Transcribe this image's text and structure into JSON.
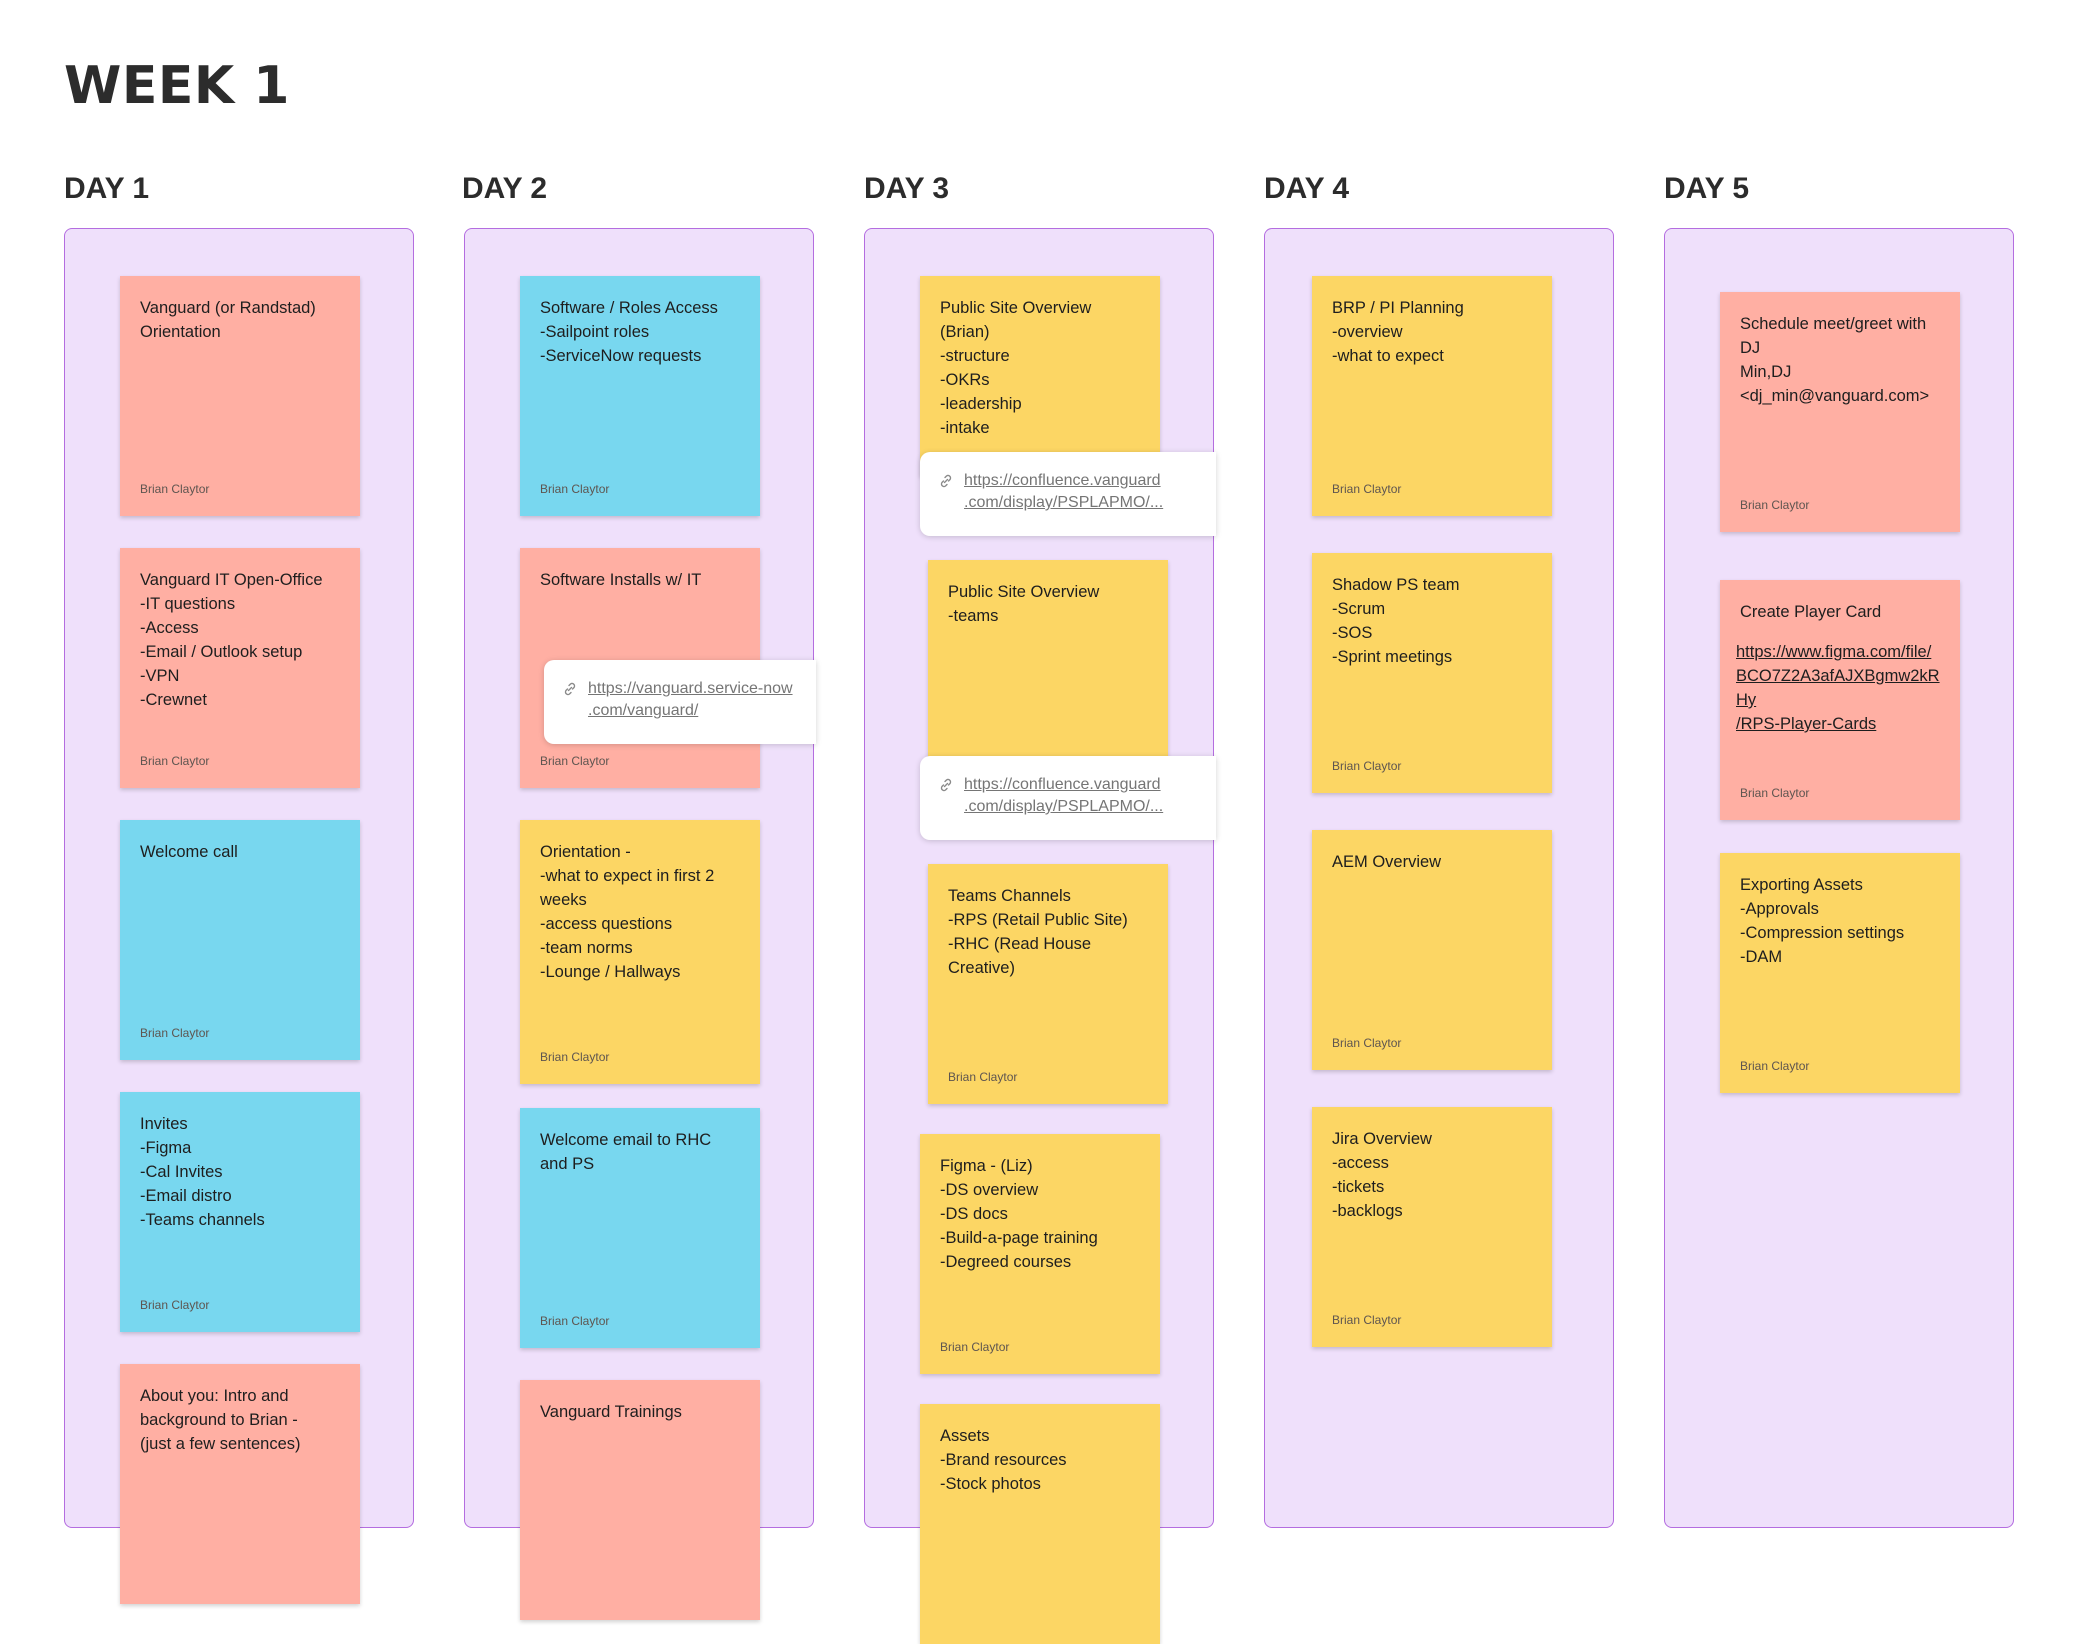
{
  "board": {
    "week_title": "WEEK 1"
  },
  "colors": {
    "column_bg": "#efe0fb",
    "column_border": "#b46de0",
    "yellow": "#fcd664",
    "salmon": "#ffafa3",
    "cyan": "#78d7ef"
  },
  "days": [
    {
      "title": "DAY 1",
      "stickies": [
        {
          "color": "salmon",
          "text": "Vanguard (or Randstad)\nOrientation",
          "author": "Brian Claytor"
        },
        {
          "color": "salmon",
          "text": "Vanguard IT Open-Office\n-IT questions\n-Access\n-Email / Outlook setup\n-VPN\n-Crewnet",
          "author": "Brian Claytor"
        },
        {
          "color": "cyan",
          "text": "Welcome call",
          "author": "Brian Claytor"
        },
        {
          "color": "cyan",
          "text": "Invites\n-Figma\n-Cal Invites\n-Email distro\n-Teams channels",
          "author": "Brian Claytor"
        },
        {
          "color": "salmon",
          "text": "About you: Intro and\nbackground to Brian -\n(just a few sentences)",
          "author": ""
        }
      ]
    },
    {
      "title": "DAY 2",
      "stickies": [
        {
          "color": "cyan",
          "text": "Software / Roles Access\n-Sailpoint roles\n-ServiceNow requests",
          "author": "Brian Claytor"
        },
        {
          "color": "salmon",
          "text": "Software Installs w/ IT",
          "author": "Brian Claytor"
        },
        {
          "color": "yellow",
          "text": "Orientation -\n-what to expect in first 2\nweeks\n-access questions\n-team norms\n-Lounge / Hallways",
          "author": "Brian Claytor"
        },
        {
          "color": "cyan",
          "text": "Welcome email to RHC\nand PS",
          "author": "Brian Claytor"
        },
        {
          "color": "salmon",
          "text": "Vanguard Trainings",
          "author": ""
        }
      ],
      "links": [
        {
          "text": "https://vanguard.service-now\n.com/vanguard/"
        }
      ]
    },
    {
      "title": "DAY 3",
      "stickies": [
        {
          "color": "yellow",
          "text": "Public Site Overview\n(Brian)\n-structure\n-OKRs\n-leadership\n-intake",
          "author": ""
        },
        {
          "color": "yellow",
          "text": "Public Site Overview\n-teams",
          "author": ""
        },
        {
          "color": "yellow",
          "text": "Teams Channels\n-RPS (Retail Public Site)\n-RHC (Read House\nCreative)",
          "author": "Brian Claytor"
        },
        {
          "color": "yellow",
          "text": "Figma - (Liz)\n-DS overview\n-DS docs\n-Build-a-page training\n-Degreed courses",
          "author": "Brian Claytor"
        },
        {
          "color": "yellow",
          "text": "Assets\n-Brand resources\n-Stock photos",
          "author": ""
        }
      ],
      "links": [
        {
          "text": "https://confluence.vanguard\n.com/display/PSPLAPMO/..."
        },
        {
          "text": "https://confluence.vanguard\n.com/display/PSPLAPMO/..."
        }
      ]
    },
    {
      "title": "DAY 4",
      "stickies": [
        {
          "color": "yellow",
          "text": "BRP / PI Planning\n-overview\n-what to expect",
          "author": "Brian Claytor"
        },
        {
          "color": "yellow",
          "text": "Shadow PS team\n-Scrum\n-SOS\n-Sprint meetings",
          "author": "Brian Claytor"
        },
        {
          "color": "yellow",
          "text": "AEM Overview",
          "author": "Brian Claytor"
        },
        {
          "color": "yellow",
          "text": "Jira Overview\n-access\n-tickets\n-backlogs",
          "author": "Brian Claytor"
        }
      ]
    },
    {
      "title": "DAY 5",
      "stickies": [
        {
          "color": "salmon",
          "text": "Schedule meet/greet with\nDJ\nMin,DJ\n<dj_min@vanguard.com>",
          "author": "Brian Claytor"
        },
        {
          "color": "salmon",
          "text": "Create Player Card",
          "url": "https://www.figma.com/file/\nBCO7Z2A3afAJXBgmw2kRHy\n/RPS-Player-Cards",
          "author": "Brian Claytor"
        },
        {
          "color": "yellow",
          "text": "Exporting Assets\n-Approvals\n-Compression settings\n-DAM",
          "author": "Brian Claytor"
        }
      ]
    }
  ]
}
